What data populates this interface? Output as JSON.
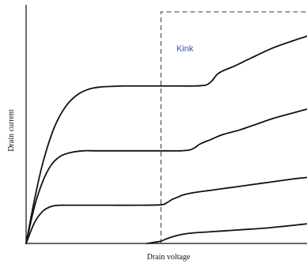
{
  "chart_data": {
    "type": "line",
    "title": "",
    "xlabel": "Drain voltage",
    "ylabel": "Drain current",
    "xlim": [
      0,
      1
    ],
    "ylim": [
      0,
      1
    ],
    "grid": false,
    "legend": "none",
    "ticks": false,
    "annotation": {
      "text": "Kink",
      "color": "#3a4fb0",
      "region_x": [
        0.48,
        1.0
      ],
      "region_y": [
        0.0,
        1.0
      ],
      "region_style": "dashed"
    },
    "series": [
      {
        "x": [
          0,
          0.03,
          0.06,
          0.1,
          0.14,
          0.18,
          0.22,
          0.26,
          0.3,
          0.35,
          0.4,
          0.45,
          0.5,
          0.55,
          0.6,
          0.64,
          0.66,
          0.68,
          0.7,
          0.74,
          0.8,
          0.88,
          0.95,
          1.0
        ],
        "y": [
          0,
          0.19,
          0.35,
          0.5,
          0.59,
          0.64,
          0.665,
          0.675,
          0.678,
          0.68,
          0.68,
          0.68,
          0.68,
          0.68,
          0.68,
          0.684,
          0.7,
          0.73,
          0.745,
          0.765,
          0.8,
          0.845,
          0.875,
          0.895
        ]
      },
      {
        "x": [
          0,
          0.03,
          0.06,
          0.09,
          0.12,
          0.15,
          0.2,
          0.25,
          0.3,
          0.4,
          0.5,
          0.55,
          0.58,
          0.6,
          0.62,
          0.66,
          0.7,
          0.76,
          0.82,
          0.88,
          0.94,
          1.0
        ],
        "y": [
          0,
          0.16,
          0.27,
          0.34,
          0.375,
          0.39,
          0.4,
          0.4,
          0.4,
          0.4,
          0.4,
          0.4,
          0.403,
          0.413,
          0.43,
          0.45,
          0.47,
          0.49,
          0.515,
          0.54,
          0.56,
          0.58
        ]
      },
      {
        "x": [
          0,
          0.03,
          0.06,
          0.09,
          0.12,
          0.16,
          0.2,
          0.3,
          0.4,
          0.48,
          0.5,
          0.52,
          0.54,
          0.56,
          0.6,
          0.66,
          0.72,
          0.78,
          0.84,
          0.9,
          0.96,
          1.0
        ],
        "y": [
          0,
          0.09,
          0.14,
          0.16,
          0.165,
          0.165,
          0.165,
          0.165,
          0.165,
          0.167,
          0.175,
          0.19,
          0.2,
          0.21,
          0.22,
          0.23,
          0.24,
          0.25,
          0.26,
          0.27,
          0.28,
          0.285
        ]
      },
      {
        "x": [
          0.43,
          0.45,
          0.48,
          0.5,
          0.53,
          0.56,
          0.6,
          0.65,
          0.7,
          0.75,
          0.8,
          0.85,
          0.9,
          0.95,
          1.0
        ],
        "y": [
          0,
          0.004,
          0.01,
          0.02,
          0.032,
          0.04,
          0.046,
          0.05,
          0.054,
          0.058,
          0.062,
          0.066,
          0.072,
          0.078,
          0.085
        ]
      }
    ]
  }
}
